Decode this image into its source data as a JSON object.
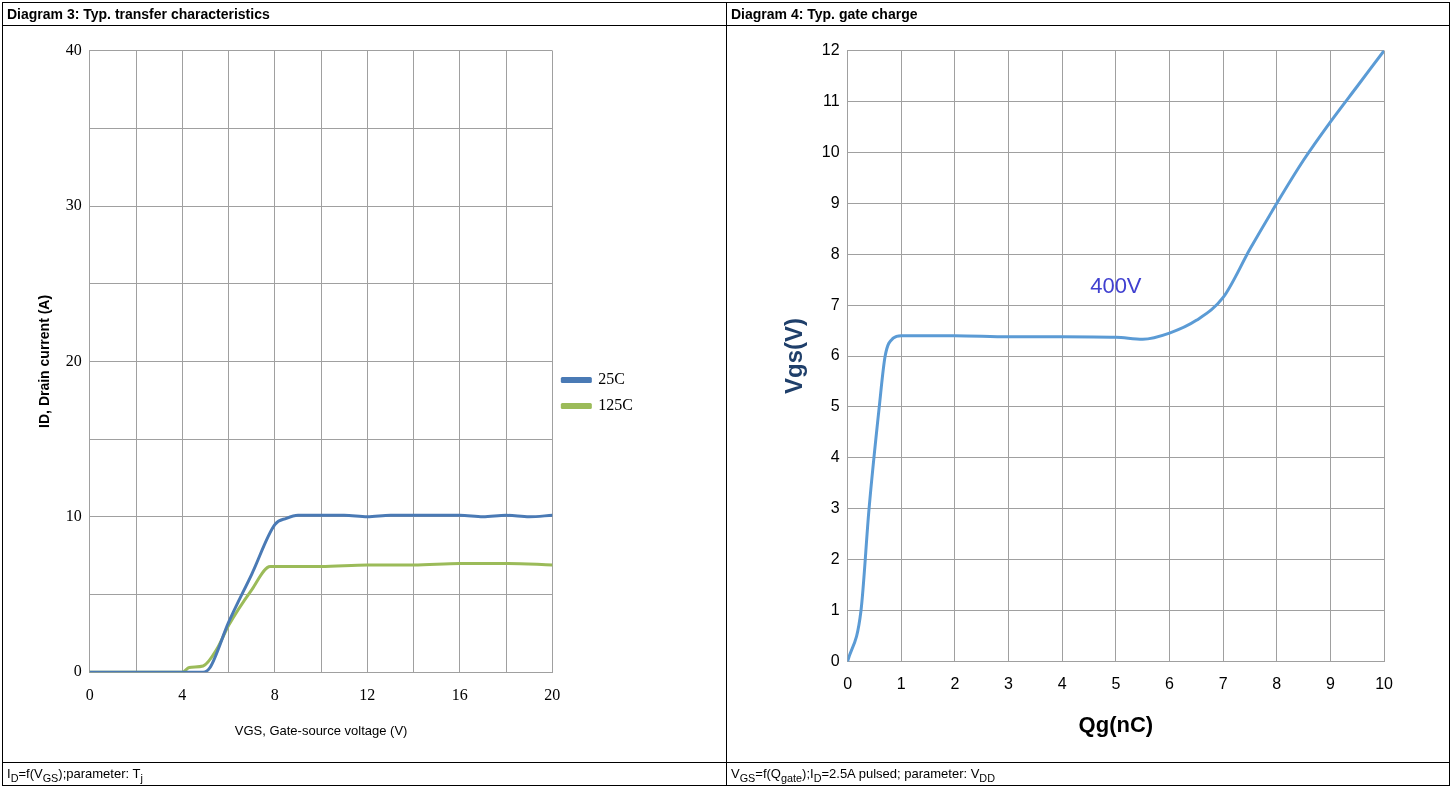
{
  "chart_data": [
    {
      "type": "line",
      "title": "Diagram 3: Typ. transfer characteristics",
      "xlabel": "VGS, Gate-source voltage (V)",
      "ylabel": "ID, Drain current (A)",
      "xlim": [
        0,
        20
      ],
      "xticks": [
        0,
        {
          "value": 2,
          "label": null
        },
        4,
        {
          "value": 6,
          "label": null
        },
        8,
        {
          "value": 10,
          "label": null
        },
        12,
        {
          "value": 14,
          "label": null
        },
        16,
        {
          "value": 18,
          "label": null
        },
        20
      ],
      "ylim": [
        0,
        40
      ],
      "yticks": [
        0,
        {
          "value": 5,
          "label": null
        },
        10,
        {
          "value": 15,
          "label": null
        },
        20,
        {
          "value": 25,
          "label": null
        },
        30,
        {
          "value": 35,
          "label": null
        },
        40
      ],
      "grid": true,
      "legend": "right",
      "marker": "none",
      "series": [
        {
          "name": "25C",
          "color": "#4a7ab5",
          "x": [
            0,
            4.9,
            5.2,
            6,
            7,
            8,
            8.5,
            9,
            10,
            11,
            12,
            13,
            14,
            15,
            16,
            17,
            18,
            19,
            20
          ],
          "values": [
            0,
            0,
            0.3,
            3.2,
            6.3,
            9.5,
            9.9,
            10.1,
            10.1,
            10.1,
            10,
            10.1,
            10.1,
            10.1,
            10.1,
            10,
            10.1,
            10,
            10.1
          ]
        },
        {
          "name": "125C",
          "color": "#9bbb59",
          "x": [
            0,
            4,
            4.3,
            4.9,
            5.5,
            6,
            7,
            7.8,
            9,
            10,
            12,
            14,
            16,
            18,
            20
          ],
          "values": [
            0,
            0,
            0.3,
            0.4,
            1.5,
            3,
            5.3,
            6.8,
            6.8,
            6.8,
            6.9,
            6.9,
            7,
            7,
            6.9
          ]
        }
      ],
      "annotations": [
        "I$_{D}$=f(V$_{GS}$);parameter: T$_{j}$"
      ]
    },
    {
      "type": "line",
      "title": "Diagram 4: Typ. gate charge",
      "xlabel": "Qg(nC)",
      "ylabel": "Vgs(V)",
      "xlim": [
        0,
        10
      ],
      "xticks": [
        0,
        1,
        2,
        3,
        4,
        5,
        6,
        7,
        8,
        9,
        10
      ],
      "ylim": [
        0,
        12
      ],
      "yticks": [
        0,
        1,
        2,
        3,
        4,
        5,
        6,
        7,
        8,
        9,
        10,
        11,
        12
      ],
      "grid": true,
      "marker": "none",
      "series": [
        {
          "name": "400V",
          "color": "#5b9bd5",
          "x": [
            0,
            0.25,
            0.4,
            0.59,
            0.7,
            0.85,
            1,
            2,
            3,
            4,
            5,
            5.5,
            6,
            6.5,
            7,
            7.5,
            8,
            8.5,
            9,
            9.5,
            10
          ],
          "values": [
            0,
            1,
            3,
            5,
            6,
            6.35,
            6.4,
            6.4,
            6.38,
            6.38,
            6.37,
            6.33,
            6.45,
            6.7,
            7.15,
            8.1,
            9,
            9.85,
            10.6,
            11.3,
            12
          ]
        }
      ],
      "annotations": [
        "V$_{GS}$=f(Q$_{gate}$);I$_{D}$=2.5A pulsed; parameter: V$_{DD}$"
      ]
    }
  ]
}
